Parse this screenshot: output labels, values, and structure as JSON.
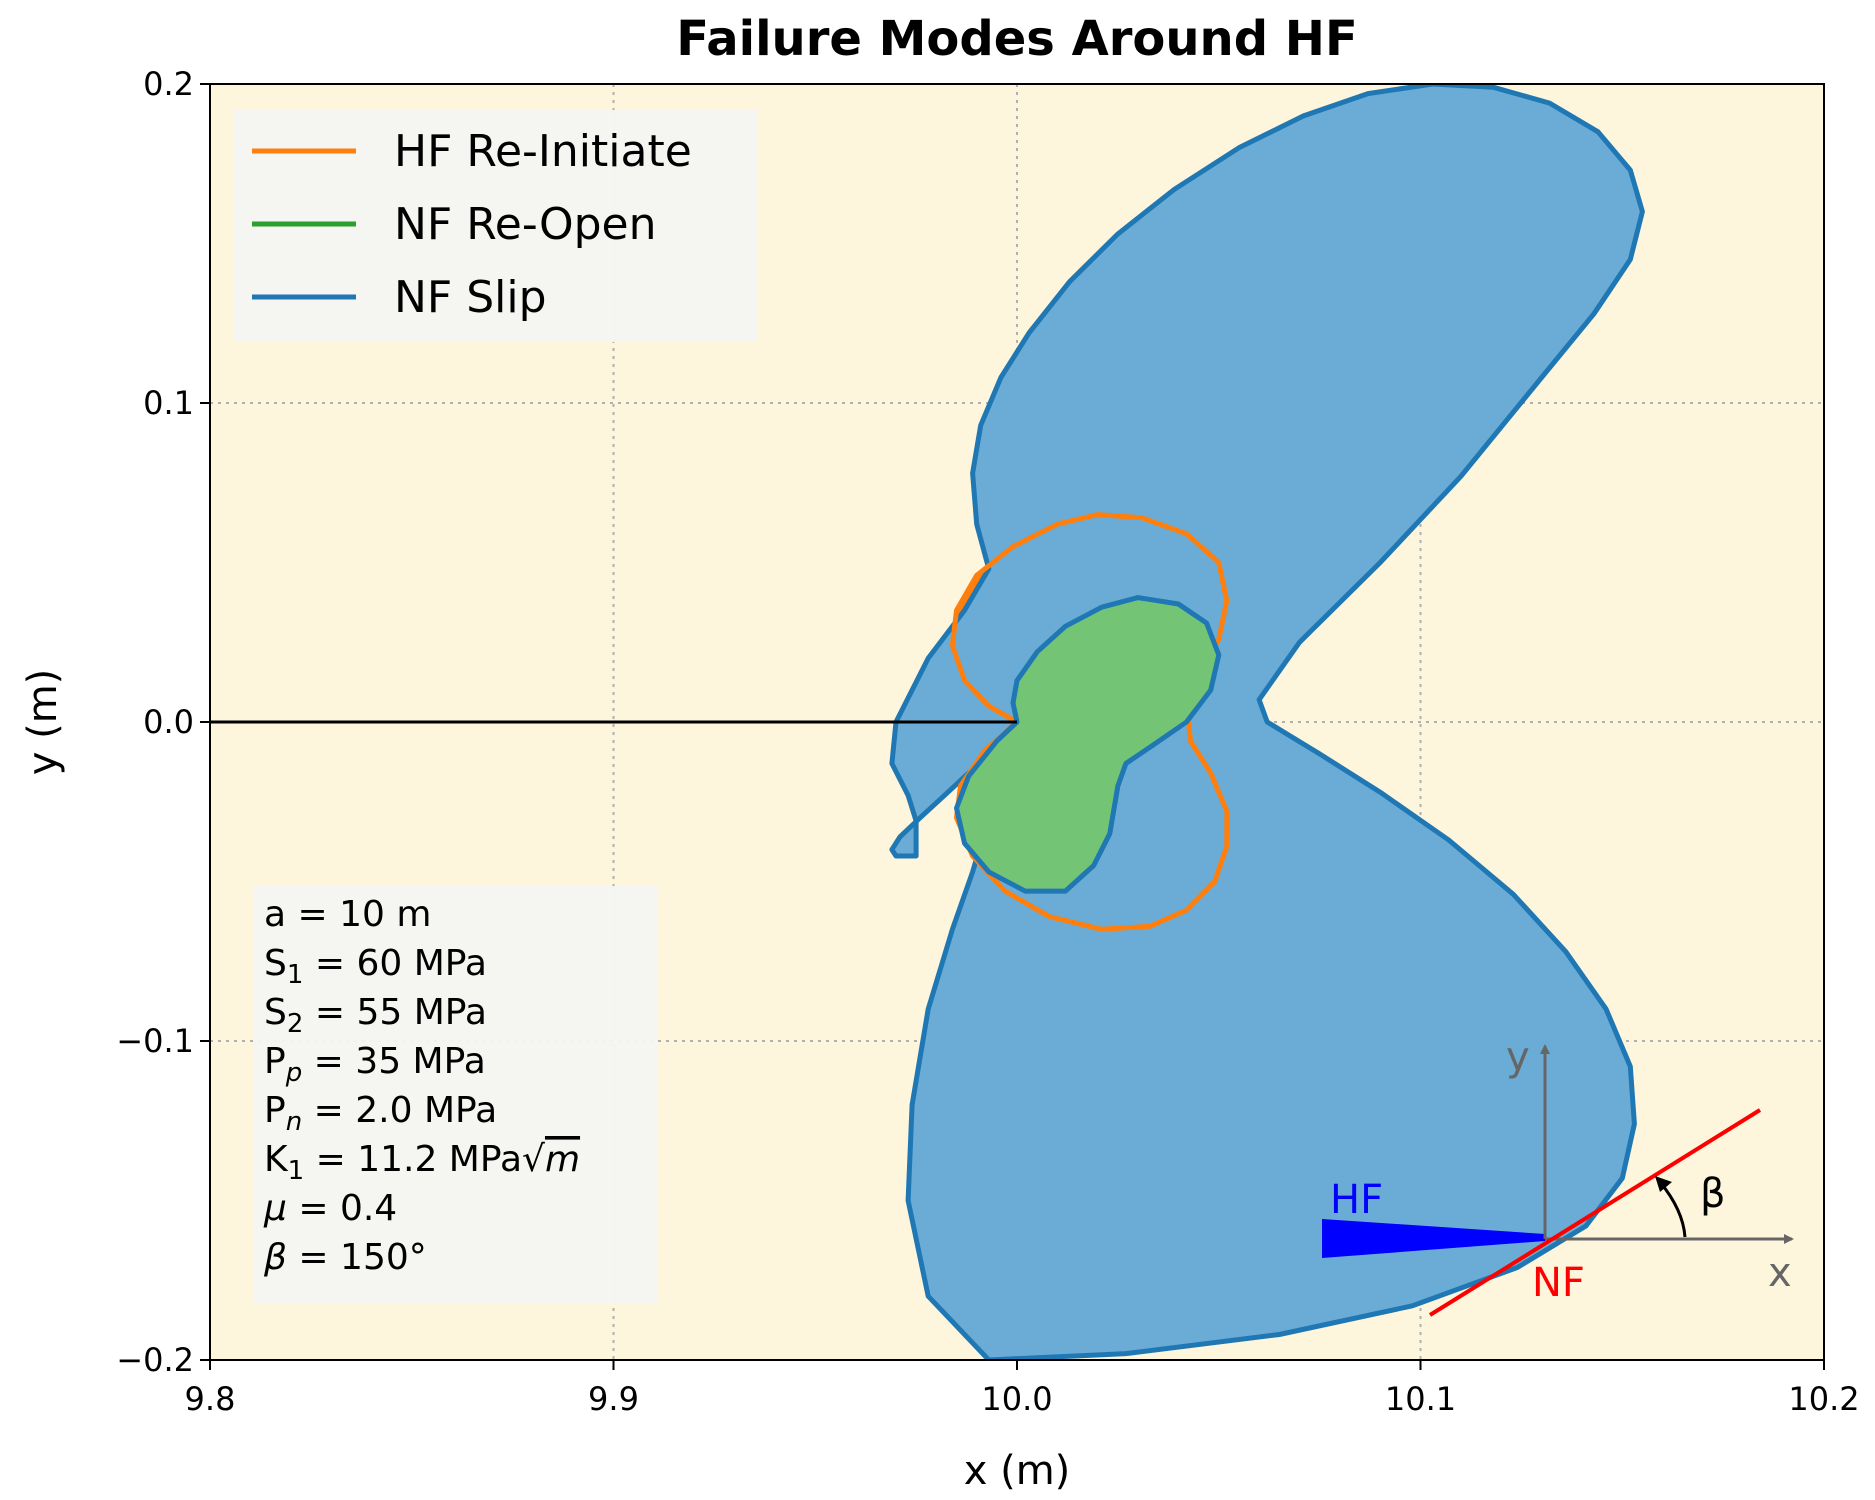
{
  "chart_data": {
    "type": "line",
    "title": "Failure Modes Around HF",
    "xlabel": "x (m)",
    "ylabel": "y (m)",
    "xlim": [
      9.8,
      10.2
    ],
    "ylim": [
      -0.2,
      0.2
    ],
    "x_ticks": [
      9.8,
      9.9,
      10.0,
      10.1,
      10.2
    ],
    "x_tick_labels": [
      "9.8",
      "9.9",
      "10.0",
      "10.1",
      "10.2"
    ],
    "y_ticks": [
      -0.2,
      -0.1,
      0.0,
      0.1,
      0.2
    ],
    "y_tick_labels": [
      "−0.2",
      "−0.1",
      "0.0",
      "0.1",
      "0.2"
    ],
    "grid": true,
    "legend_position": "top-left",
    "background_color": "#fdf6dc",
    "series": [
      {
        "name": "NF Slip",
        "color": "#1f77b4",
        "fill": "#6aacd6",
        "x": [
          9.975,
          9.975,
          9.973,
          9.969,
          9.97,
          9.978,
          9.987,
          9.993,
          9.99,
          9.989,
          9.991,
          9.996,
          10.003,
          10.013,
          10.025,
          10.039,
          10.055,
          10.071,
          10.087,
          10.103,
          10.118,
          10.132,
          10.144,
          10.152,
          10.155,
          10.152,
          10.143,
          10.13,
          10.11,
          10.09,
          10.07,
          10.06,
          10.062,
          10.075,
          10.09,
          10.107,
          10.123,
          10.136,
          10.146,
          10.152,
          10.153,
          10.15,
          10.141,
          10.124,
          10.098,
          10.065,
          10.027,
          9.993,
          9.978,
          9.973,
          9.974,
          9.978,
          9.984,
          9.989,
          9.993,
          9.996,
          9.998,
          9.999,
          10.0,
          9.998,
          9.994,
          9.988,
          9.982,
          9.976,
          9.971,
          9.969,
          9.97,
          9.975
        ],
        "y": [
          -0.042,
          -0.031,
          -0.023,
          -0.013,
          0.0,
          0.02,
          0.035,
          0.048,
          0.062,
          0.078,
          0.093,
          0.108,
          0.122,
          0.138,
          0.153,
          0.167,
          0.18,
          0.19,
          0.197,
          0.2,
          0.199,
          0.194,
          0.185,
          0.173,
          0.16,
          0.145,
          0.128,
          0.108,
          0.077,
          0.05,
          0.025,
          0.007,
          0.0,
          -0.01,
          -0.022,
          -0.037,
          -0.054,
          -0.072,
          -0.09,
          -0.108,
          -0.126,
          -0.143,
          -0.158,
          -0.171,
          -0.183,
          -0.192,
          -0.198,
          -0.2,
          -0.18,
          -0.15,
          -0.12,
          -0.09,
          -0.065,
          -0.047,
          -0.03,
          -0.017,
          -0.008,
          -0.003,
          0.0,
          -0.003,
          -0.009,
          -0.016,
          -0.023,
          -0.03,
          -0.036,
          -0.04,
          -0.042,
          -0.042
        ]
      },
      {
        "name": "HF Re-Initiate",
        "color": "#ff7f0e",
        "x": [
          10.0,
          9.993,
          9.987,
          9.984,
          9.985,
          9.99,
          9.999,
          10.01,
          10.02,
          10.031,
          10.042,
          10.05,
          10.052,
          10.05,
          10.045,
          10.042,
          10.043,
          10.048,
          10.052,
          10.052,
          10.049,
          10.042,
          10.033,
          10.021,
          10.008,
          9.997,
          9.989,
          9.985,
          9.986,
          9.992,
          10.0
        ],
        "y": [
          0.0,
          0.005,
          0.013,
          0.024,
          0.035,
          0.046,
          0.055,
          0.062,
          0.065,
          0.064,
          0.059,
          0.05,
          0.038,
          0.026,
          0.015,
          0.006,
          -0.006,
          -0.016,
          -0.028,
          -0.039,
          -0.05,
          -0.059,
          -0.064,
          -0.065,
          -0.061,
          -0.053,
          -0.042,
          -0.03,
          -0.02,
          -0.009,
          0.0
        ]
      },
      {
        "name": "NF Re-Open",
        "color": "#1f77b4",
        "fill": "#74c476",
        "x": [
          10.0,
          9.999,
          10.0,
          10.005,
          10.012,
          10.021,
          10.03,
          10.04,
          10.047,
          10.05,
          10.048,
          10.042,
          10.034,
          10.027,
          10.025,
          10.023,
          10.019,
          10.012,
          10.002,
          9.993,
          9.987,
          9.985,
          9.988,
          9.995,
          10.0
        ],
        "y": [
          0.0,
          0.006,
          0.013,
          0.022,
          0.03,
          0.036,
          0.039,
          0.037,
          0.031,
          0.021,
          0.01,
          0.0,
          -0.007,
          -0.013,
          -0.02,
          -0.035,
          -0.045,
          -0.053,
          -0.053,
          -0.047,
          -0.038,
          -0.027,
          -0.017,
          -0.006,
          0.0
        ]
      }
    ],
    "annotations": {
      "hf_line": {
        "x": [
          9.8,
          10.0
        ],
        "y": [
          0.0,
          0.0
        ],
        "color": "#000000"
      },
      "params": [
        {
          "text": "a   = 10 m"
        },
        {
          "base": "S",
          "sub": "1",
          "rest": " = 60 MPa"
        },
        {
          "base": "S",
          "sub": "2",
          "rest": " = 55 MPa"
        },
        {
          "base": "P",
          "sub": "p",
          "rest": " = 35 MPa"
        },
        {
          "base": "P",
          "sub": "n",
          "rest": " = 2.0 MPa"
        },
        {
          "base": "K",
          "sub": "1",
          "rest": " = 11.2 MPa√",
          "ital": "m"
        },
        {
          "ital_lead": "μ",
          "rest": "   =  0.4"
        },
        {
          "ital_lead": "β",
          "rest": "   = 150°"
        }
      ],
      "inset": {
        "hf_label": "HF",
        "nf_label": "NF",
        "x_label": "x",
        "y_label": "y",
        "beta_label": "β",
        "hf_color": "#0000ff",
        "nf_color": "#ff0000",
        "axis_color": "#666666"
      }
    }
  }
}
